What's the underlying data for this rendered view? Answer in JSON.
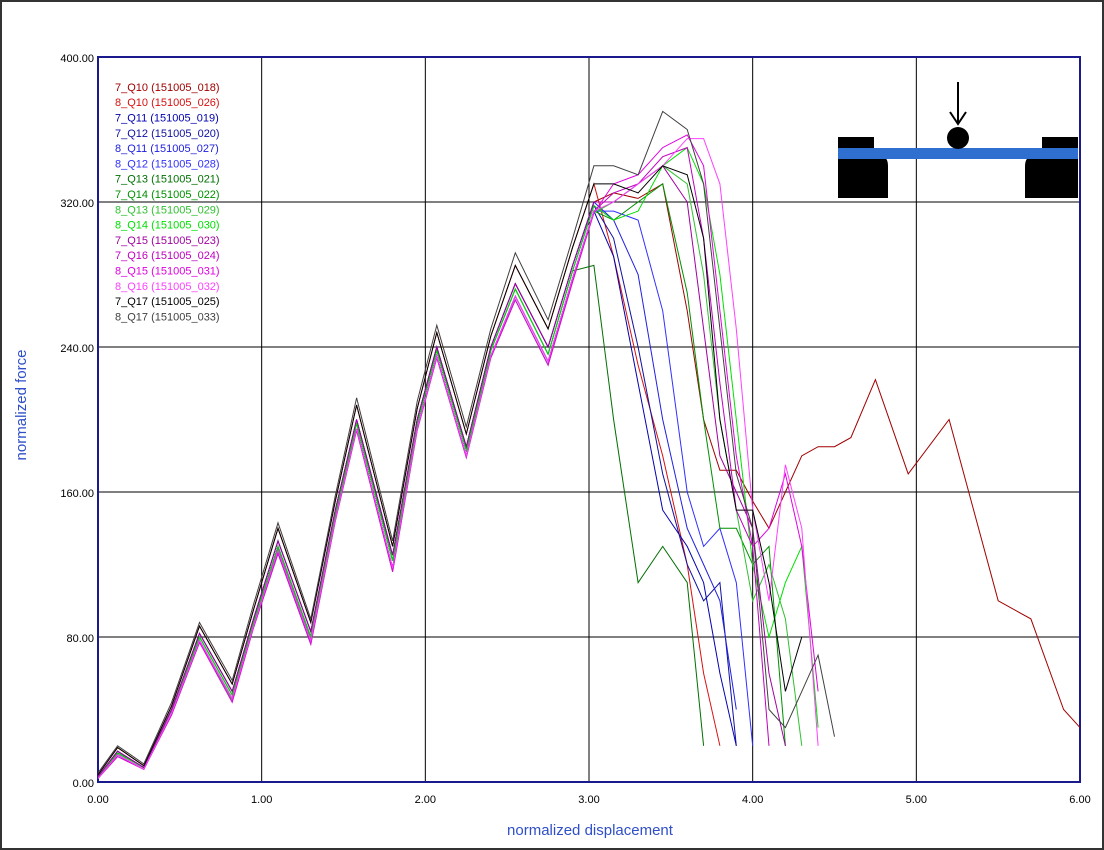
{
  "chart_data": {
    "type": "line",
    "y_label": "normalized force",
    "x_label": "normalized displacement",
    "xlim": [
      0,
      6
    ],
    "ylim": [
      0,
      400
    ],
    "xticks": [
      {
        "value": 0,
        "label": "0.00"
      },
      {
        "value": 1,
        "label": "1.00"
      },
      {
        "value": 2,
        "label": "2.00"
      },
      {
        "value": 3,
        "label": "3.00"
      },
      {
        "value": 4,
        "label": "4.00"
      },
      {
        "value": 5,
        "label": "5.00"
      },
      {
        "value": 6,
        "label": "6.00"
      }
    ],
    "yticks": [
      {
        "value": 0,
        "label": "0.00"
      },
      {
        "value": 80,
        "label": "80.00"
      },
      {
        "value": 160,
        "label": "160.00"
      },
      {
        "value": 240,
        "label": "240.00"
      },
      {
        "value": 320,
        "label": "320.00"
      },
      {
        "value": 400,
        "label": "400.00"
      }
    ],
    "grid": true,
    "legend": "top-left",
    "x": [
      0,
      0.12,
      0.28,
      0.45,
      0.62,
      0.82,
      0.95,
      1.1,
      1.3,
      1.45,
      1.58,
      1.8,
      1.95,
      2.07,
      2.25,
      2.4,
      2.55,
      2.75,
      2.9,
      3.03,
      3.15,
      3.3,
      3.45,
      3.6,
      3.7,
      3.8,
      3.9,
      4.0,
      4.1,
      4.2,
      4.3,
      4.4,
      4.5,
      4.6,
      4.75,
      4.95,
      5.2,
      5.5,
      5.7,
      5.9,
      6.0
    ],
    "series": [
      {
        "name": "7_Q10 (151005_018)",
        "color": "#a00000",
        "values": [
          3,
          17,
          8,
          40,
          82,
          50,
          90,
          133,
          83,
          150,
          200,
          125,
          200,
          240,
          185,
          240,
          275,
          240,
          285,
          320,
          325,
          322,
          330,
          260,
          200,
          172,
          172,
          155,
          140,
          160,
          180,
          185,
          185,
          190,
          222,
          170,
          200,
          100,
          90,
          40,
          30
        ]
      },
      {
        "name": "8_Q10 (151005_026)",
        "color": "#d81010",
        "values": [
          4,
          19,
          9,
          42,
          86,
          54,
          95,
          140,
          88,
          155,
          208,
          130,
          206,
          248,
          192,
          246,
          285,
          250,
          295,
          330,
          290,
          230,
          180,
          120,
          60,
          20,
          null,
          null,
          null,
          null,
          null,
          null,
          null,
          null,
          null,
          null,
          null,
          null,
          null,
          null,
          null
        ]
      },
      {
        "name": "7_Q11 (151005_019)",
        "color": "#0000b0",
        "values": [
          2,
          15,
          7,
          38,
          78,
          46,
          86,
          128,
          78,
          145,
          195,
          118,
          195,
          235,
          180,
          235,
          268,
          232,
          278,
          315,
          290,
          220,
          150,
          130,
          110,
          60,
          20,
          null,
          null,
          null,
          null,
          null,
          null,
          null,
          null,
          null,
          null,
          null,
          null,
          null,
          null
        ]
      },
      {
        "name": "7_Q12 (151005_020)",
        "color": "#1010a0",
        "values": [
          3,
          16,
          8,
          40,
          80,
          48,
          88,
          130,
          80,
          148,
          198,
          122,
          198,
          238,
          183,
          238,
          272,
          236,
          282,
          318,
          300,
          240,
          170,
          120,
          100,
          110,
          20,
          null,
          null,
          null,
          null,
          null,
          null,
          null,
          null,
          null,
          null,
          null,
          null,
          null,
          null
        ]
      },
      {
        "name": "8_Q11 (151005_027)",
        "color": "#2020e0",
        "values": [
          3,
          17,
          8,
          40,
          82,
          50,
          90,
          133,
          83,
          150,
          200,
          125,
          200,
          240,
          185,
          240,
          275,
          240,
          285,
          320,
          310,
          280,
          200,
          140,
          120,
          100,
          40,
          null,
          null,
          null,
          null,
          null,
          null,
          null,
          null,
          null,
          null,
          null,
          null,
          null,
          null
        ]
      },
      {
        "name": "8_Q12 (151005_028)",
        "color": "#3030ff",
        "values": [
          2,
          15,
          7,
          38,
          78,
          46,
          86,
          128,
          78,
          145,
          195,
          118,
          195,
          235,
          180,
          235,
          268,
          232,
          278,
          315,
          315,
          310,
          260,
          160,
          130,
          140,
          110,
          20,
          null,
          null,
          null,
          null,
          null,
          null,
          null,
          null,
          null,
          null,
          null,
          null,
          null
        ]
      },
      {
        "name": "7_Q13 (151005_021)",
        "color": "#007000",
        "values": [
          3,
          16,
          8,
          40,
          80,
          48,
          88,
          130,
          80,
          148,
          198,
          122,
          198,
          238,
          183,
          238,
          272,
          236,
          282,
          285,
          200,
          110,
          130,
          110,
          20,
          null,
          null,
          null,
          null,
          null,
          null,
          null,
          null,
          null,
          null,
          null,
          null,
          null,
          null,
          null,
          null
        ]
      },
      {
        "name": "7_Q14 (151005_022)",
        "color": "#009000",
        "values": [
          2,
          15,
          7,
          38,
          78,
          46,
          86,
          128,
          78,
          145,
          195,
          118,
          195,
          235,
          180,
          235,
          268,
          232,
          278,
          315,
          310,
          320,
          330,
          270,
          200,
          140,
          140,
          120,
          130,
          20,
          null,
          null,
          null,
          null,
          null,
          null,
          null,
          null,
          null,
          null,
          null
        ]
      },
      {
        "name": "8_Q13 (151005_029)",
        "color": "#30c030",
        "values": [
          2,
          14,
          7,
          37,
          77,
          45,
          85,
          126,
          76,
          144,
          194,
          116,
          194,
          234,
          179,
          234,
          266,
          230,
          276,
          314,
          320,
          330,
          340,
          330,
          280,
          200,
          150,
          100,
          120,
          90,
          20,
          null,
          null,
          null,
          null,
          null,
          null,
          null,
          null,
          null,
          null
        ]
      },
      {
        "name": "8_Q14 (151005_030)",
        "color": "#00e000",
        "values": [
          3,
          16,
          8,
          40,
          80,
          48,
          88,
          130,
          80,
          148,
          198,
          122,
          198,
          238,
          183,
          238,
          272,
          236,
          282,
          318,
          310,
          315,
          340,
          350,
          330,
          280,
          200,
          120,
          80,
          110,
          130,
          30,
          null,
          null,
          null,
          null,
          null,
          null,
          null,
          null,
          null
        ]
      },
      {
        "name": "7_Q15 (151005_023)",
        "color": "#a000a0",
        "values": [
          3,
          17,
          8,
          40,
          82,
          50,
          90,
          133,
          83,
          150,
          200,
          125,
          200,
          240,
          185,
          240,
          275,
          240,
          285,
          320,
          320,
          330,
          340,
          320,
          250,
          180,
          160,
          140,
          60,
          20,
          null,
          null,
          null,
          null,
          null,
          null,
          null,
          null,
          null,
          null,
          null
        ]
      },
      {
        "name": "7_Q16 (151005_024)",
        "color": "#c000c0",
        "values": [
          2,
          15,
          7,
          38,
          78,
          46,
          86,
          128,
          78,
          145,
          195,
          118,
          195,
          235,
          180,
          235,
          268,
          232,
          278,
          315,
          325,
          330,
          345,
          350,
          300,
          220,
          150,
          130,
          20,
          null,
          null,
          null,
          null,
          null,
          null,
          null,
          null,
          null,
          null,
          null,
          null
        ]
      },
      {
        "name": "8_Q15 (151005_031)",
        "color": "#e000e0",
        "values": [
          2,
          14,
          7,
          37,
          77,
          44,
          85,
          126,
          76,
          144,
          194,
          116,
          194,
          234,
          179,
          234,
          266,
          230,
          276,
          314,
          330,
          335,
          350,
          357,
          340,
          260,
          180,
          130,
          140,
          170,
          130,
          50,
          null,
          null,
          null,
          null,
          null,
          null,
          null,
          null,
          null
        ]
      },
      {
        "name": "8_Q16 (151005_032)",
        "color": "#ff40ff",
        "values": [
          2,
          15,
          7,
          38,
          78,
          46,
          86,
          128,
          78,
          145,
          195,
          118,
          195,
          235,
          180,
          235,
          268,
          232,
          278,
          315,
          320,
          330,
          340,
          355,
          355,
          330,
          250,
          150,
          100,
          175,
          140,
          20,
          null,
          null,
          null,
          null,
          null,
          null,
          null,
          null,
          null
        ]
      },
      {
        "name": "7_Q17 (151005_025)",
        "color": "#000000",
        "values": [
          4,
          19,
          9,
          42,
          86,
          54,
          95,
          140,
          88,
          155,
          208,
          130,
          206,
          248,
          192,
          246,
          285,
          250,
          295,
          330,
          330,
          325,
          340,
          335,
          300,
          200,
          150,
          150,
          110,
          50,
          80,
          null,
          null,
          null,
          null,
          null,
          null,
          null,
          null,
          null,
          null
        ]
      },
      {
        "name": "8_Q17 (151005_033)",
        "color": "#404040",
        "values": [
          5,
          20,
          10,
          44,
          88,
          56,
          98,
          143,
          90,
          158,
          212,
          133,
          210,
          252,
          196,
          250,
          292,
          255,
          300,
          340,
          340,
          335,
          370,
          360,
          330,
          250,
          170,
          140,
          40,
          30,
          50,
          70,
          25,
          null,
          null,
          null,
          null,
          null,
          null,
          null,
          null
        ]
      }
    ]
  }
}
